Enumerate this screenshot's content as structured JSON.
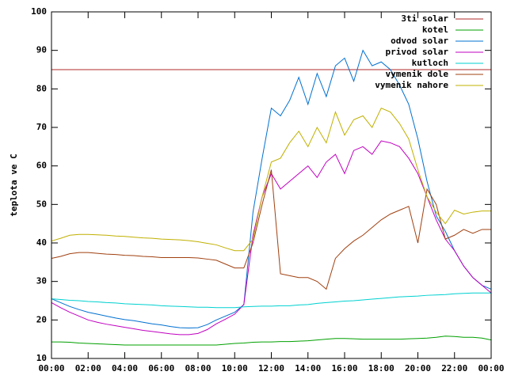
{
  "chart_data": {
    "type": "line",
    "ylabel": "teplota ve C",
    "x": [
      0,
      0.5,
      1,
      1.5,
      2,
      2.5,
      3,
      3.5,
      4,
      4.5,
      5,
      5.5,
      6,
      6.5,
      7,
      7.5,
      8,
      8.5,
      9,
      9.5,
      10,
      10.5,
      11,
      11.5,
      12,
      12.5,
      13,
      13.5,
      14,
      14.5,
      15,
      15.5,
      16,
      16.5,
      17,
      17.5,
      18,
      18.5,
      19,
      19.5,
      20,
      20.5,
      21,
      21.5,
      22,
      22.5,
      23,
      23.5,
      24
    ],
    "xlim": [
      0,
      24
    ],
    "xticks": [
      {
        "value": 0,
        "label": "00:00"
      },
      {
        "value": 2,
        "label": "02:00"
      },
      {
        "value": 4,
        "label": "04:00"
      },
      {
        "value": 6,
        "label": "06:00"
      },
      {
        "value": 8,
        "label": "08:00"
      },
      {
        "value": 10,
        "label": "10:00"
      },
      {
        "value": 12,
        "label": "12:00"
      },
      {
        "value": 14,
        "label": "14:00"
      },
      {
        "value": 16,
        "label": "16:00"
      },
      {
        "value": 18,
        "label": "18:00"
      },
      {
        "value": 20,
        "label": "20:00"
      },
      {
        "value": 22,
        "label": "22:00"
      },
      {
        "value": 24,
        "label": "00:00"
      }
    ],
    "ylim": [
      10,
      100
    ],
    "yticks": [
      10,
      20,
      30,
      40,
      50,
      60,
      70,
      80,
      90,
      100
    ],
    "grid": false,
    "legend": "top-right",
    "series": [
      {
        "name": "3ti solar",
        "color": "#b02828",
        "values": [
          85,
          85,
          85,
          85,
          85,
          85,
          85,
          85,
          85,
          85,
          85,
          85,
          85,
          85,
          85,
          85,
          85,
          85,
          85,
          85,
          85,
          85,
          85,
          85,
          85,
          85,
          85,
          85,
          85,
          85,
          85,
          85,
          85,
          85,
          85,
          85,
          85,
          85,
          85,
          85,
          85,
          85,
          85,
          85,
          85,
          85,
          85,
          85,
          85
        ]
      },
      {
        "name": "kotel",
        "color": "#00a000",
        "values": [
          14.3,
          14.3,
          14.2,
          14.0,
          13.9,
          13.8,
          13.7,
          13.6,
          13.5,
          13.5,
          13.5,
          13.5,
          13.5,
          13.5,
          13.5,
          13.5,
          13.5,
          13.5,
          13.5,
          13.7,
          13.9,
          14.0,
          14.2,
          14.3,
          14.3,
          14.4,
          14.4,
          14.5,
          14.6,
          14.8,
          15.0,
          15.2,
          15.2,
          15.1,
          15.0,
          15.0,
          15.0,
          15.0,
          15.0,
          15.1,
          15.2,
          15.3,
          15.5,
          15.8,
          15.7,
          15.5,
          15.5,
          15.3,
          14.8
        ]
      },
      {
        "name": "odvod solar",
        "color": "#0070d0",
        "values": [
          25.5,
          24.5,
          23.5,
          22.7,
          22,
          21.5,
          21,
          20.5,
          20.1,
          19.8,
          19.4,
          19,
          18.7,
          18.3,
          18,
          17.9,
          18,
          18.8,
          20,
          21,
          22,
          24,
          48,
          62,
          75,
          73,
          77,
          83,
          76,
          84,
          78,
          86,
          88,
          82,
          90,
          86,
          87,
          85,
          81,
          76,
          67,
          56,
          47,
          43,
          38,
          34,
          31,
          29,
          28
        ]
      },
      {
        "name": "privod solar",
        "color": "#c000c0",
        "values": [
          24.5,
          23.2,
          22,
          21,
          20,
          19.4,
          18.9,
          18.5,
          18.1,
          17.7,
          17.3,
          17,
          16.7,
          16.4,
          16.2,
          16.2,
          16.5,
          17.5,
          19,
          20.2,
          21.5,
          24,
          42,
          52,
          58,
          54,
          56,
          58,
          60,
          57,
          61,
          63,
          58,
          64,
          65,
          63,
          66.5,
          66,
          65,
          62,
          58,
          52,
          46,
          41,
          38,
          34,
          31,
          29,
          27
        ]
      },
      {
        "name": "kutloch",
        "color": "#00d0d0",
        "values": [
          25.5,
          25.3,
          25.1,
          25,
          24.8,
          24.7,
          24.5,
          24.4,
          24.2,
          24.1,
          24,
          23.9,
          23.7,
          23.6,
          23.5,
          23.4,
          23.3,
          23.3,
          23.2,
          23.2,
          23.2,
          23.4,
          23.5,
          23.6,
          23.6,
          23.7,
          23.7,
          23.9,
          24,
          24.3,
          24.5,
          24.7,
          24.9,
          25,
          25.2,
          25.4,
          25.6,
          25.8,
          26,
          26.1,
          26.2,
          26.4,
          26.5,
          26.6,
          26.8,
          26.9,
          27,
          27,
          27
        ]
      },
      {
        "name": "vymenik dole",
        "color": "#a04010",
        "values": [
          36,
          36.5,
          37.2,
          37.5,
          37.5,
          37.3,
          37.1,
          37,
          36.8,
          36.7,
          36.5,
          36.4,
          36.2,
          36.2,
          36.2,
          36.2,
          36.1,
          35.8,
          35.5,
          34.5,
          33.5,
          33.5,
          40,
          50,
          59,
          32,
          31.5,
          31,
          31,
          30,
          28,
          36,
          38.5,
          40.5,
          42,
          44,
          46,
          47.5,
          48.5,
          49.5,
          40,
          54,
          50,
          41,
          42,
          43.5,
          42.5,
          43.5,
          43.5
        ]
      },
      {
        "name": "vymenik nahore",
        "color": "#c0b000",
        "values": [
          40.5,
          41.2,
          42,
          42.2,
          42.2,
          42.1,
          42,
          41.8,
          41.7,
          41.5,
          41.3,
          41.2,
          41,
          40.9,
          40.8,
          40.6,
          40.3,
          39.9,
          39.5,
          38.7,
          38,
          38,
          41,
          52,
          61,
          62,
          66,
          69,
          65,
          70,
          66,
          74,
          68,
          72,
          73,
          70,
          75,
          74,
          71,
          67,
          59,
          52,
          48,
          45,
          48.5,
          47.5,
          48,
          48.3,
          48.3
        ]
      }
    ]
  }
}
